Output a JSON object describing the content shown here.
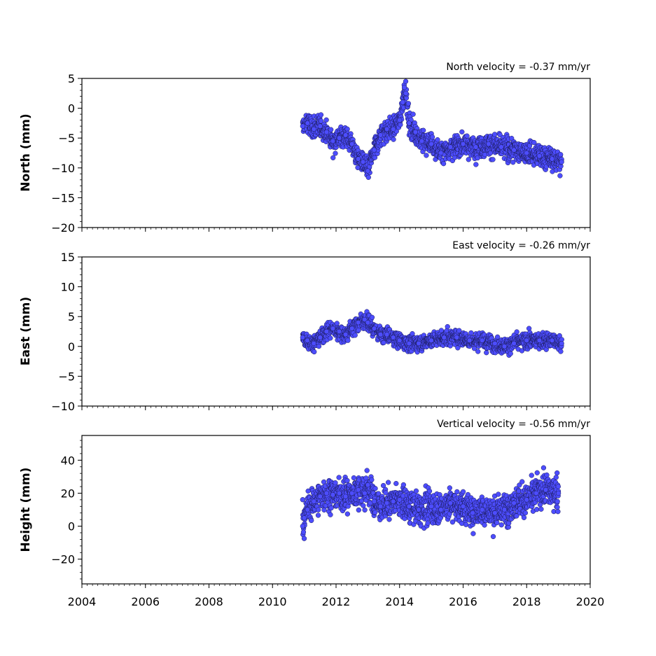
{
  "chart_data": [
    {
      "type": "scatter",
      "title": "North velocity = -0.37 mm/yr",
      "xlabel": "",
      "ylabel": "North (mm)",
      "xlim": [
        2004,
        2020
      ],
      "ylim": [
        -20,
        5
      ],
      "x_ticks": [
        "2004",
        "2006",
        "2008",
        "2010",
        "2012",
        "2014",
        "2016",
        "2018",
        "2020"
      ],
      "y_ticks": [
        "5",
        "0",
        "−5",
        "−10",
        "−15",
        "−20"
      ],
      "x_tick_labels_visible": false,
      "grid": false,
      "marker_color": "#4d4dff",
      "series": [
        {
          "x": [
            2010.95,
            2011.1,
            2011.3,
            2011.5,
            2011.7,
            2011.9,
            2012.1,
            2012.3,
            2012.5,
            2012.7,
            2012.85,
            2013.0,
            2013.2,
            2013.4,
            2013.6,
            2013.8,
            2014.0,
            2014.1,
            2014.15,
            2014.2,
            2014.3,
            2014.5,
            2014.7,
            2015.0,
            2015.3,
            2015.6,
            2016.0,
            2016.4,
            2016.8,
            2017.2,
            2017.6,
            2018.0,
            2018.4,
            2018.8,
            2019.1
          ],
          "y": [
            -3.0,
            -2.5,
            -3.5,
            -3.0,
            -4.0,
            -5.5,
            -5.0,
            -4.5,
            -6.0,
            -8.5,
            -9.0,
            -10.5,
            -7.0,
            -4.5,
            -3.5,
            -3.5,
            -2.0,
            1.0,
            3.5,
            2.5,
            -2.5,
            -4.0,
            -5.5,
            -6.0,
            -7.5,
            -6.5,
            -6.0,
            -6.5,
            -6.0,
            -6.5,
            -7.0,
            -7.5,
            -8.0,
            -8.5,
            -9.0
          ]
        }
      ]
    },
    {
      "type": "scatter",
      "title": "East velocity = -0.26 mm/yr",
      "xlabel": "",
      "ylabel": "East (mm)",
      "xlim": [
        2004,
        2020
      ],
      "ylim": [
        -10,
        15
      ],
      "x_ticks": [
        "2004",
        "2006",
        "2008",
        "2010",
        "2012",
        "2014",
        "2016",
        "2018",
        "2020"
      ],
      "y_ticks": [
        "15",
        "10",
        "5",
        "0",
        "−5",
        "−10"
      ],
      "x_tick_labels_visible": false,
      "grid": false,
      "marker_color": "#4d4dff",
      "series": [
        {
          "x": [
            2010.95,
            2011.1,
            2011.3,
            2011.5,
            2011.7,
            2011.9,
            2012.1,
            2012.3,
            2012.5,
            2012.7,
            2012.9,
            2013.0,
            2013.2,
            2013.4,
            2013.6,
            2013.8,
            2014.0,
            2014.3,
            2014.6,
            2015.0,
            2015.4,
            2015.8,
            2016.2,
            2016.6,
            2017.0,
            2017.3,
            2017.6,
            2018.0,
            2018.4,
            2018.8,
            2019.1
          ],
          "y": [
            1.5,
            1.0,
            0.5,
            1.5,
            2.5,
            3.0,
            2.5,
            2.0,
            3.0,
            4.0,
            4.5,
            4.0,
            3.0,
            2.0,
            2.0,
            1.5,
            1.0,
            0.5,
            0.5,
            1.0,
            1.5,
            1.5,
            1.0,
            1.0,
            0.5,
            0.0,
            0.5,
            1.0,
            1.0,
            1.0,
            0.5
          ]
        }
      ]
    },
    {
      "type": "scatter",
      "title": "Vertical velocity = -0.56 mm/yr",
      "xlabel": "",
      "ylabel": "Height (mm)",
      "xlim": [
        2004,
        2020
      ],
      "ylim": [
        -35,
        55
      ],
      "x_ticks": [
        "2004",
        "2006",
        "2008",
        "2010",
        "2012",
        "2014",
        "2016",
        "2018",
        "2020"
      ],
      "y_ticks": [
        "40",
        "20",
        "0",
        "−20"
      ],
      "x_tick_labels_visible": true,
      "grid": false,
      "marker_color": "#4d4dff",
      "series": [
        {
          "x": [
            2010.95,
            2011.0,
            2011.1,
            2011.3,
            2011.5,
            2011.7,
            2011.9,
            2012.1,
            2012.3,
            2012.5,
            2012.7,
            2012.9,
            2013.0,
            2013.2,
            2013.4,
            2013.6,
            2013.8,
            2014.0,
            2014.3,
            2014.6,
            2015.0,
            2015.3,
            2015.6,
            2016.0,
            2016.3,
            2016.6,
            2017.0,
            2017.3,
            2017.6,
            2018.0,
            2018.3,
            2018.6,
            2019.0
          ],
          "y": [
            0,
            5,
            10,
            15,
            18,
            20,
            19,
            20,
            18,
            20,
            22,
            20,
            25,
            15,
            12,
            14,
            15,
            16,
            12,
            10,
            12,
            10,
            14,
            12,
            8,
            10,
            8,
            10,
            14,
            16,
            20,
            22,
            20
          ]
        }
      ]
    }
  ]
}
